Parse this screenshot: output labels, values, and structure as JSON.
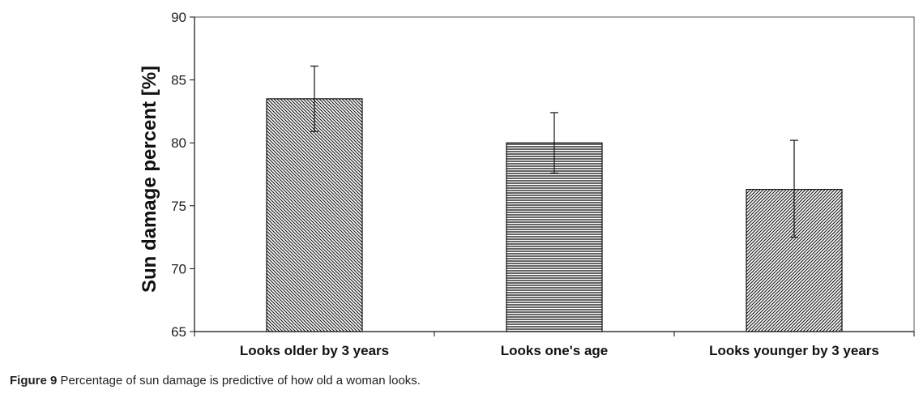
{
  "chart_data": {
    "type": "bar",
    "categories": [
      "Looks older by 3 years",
      "Looks one's age",
      "Looks younger by 3 years"
    ],
    "values": [
      83.5,
      80.0,
      76.3
    ],
    "error_bars": [
      {
        "low": 80.9,
        "high": 86.1
      },
      {
        "low": 77.6,
        "high": 82.4
      },
      {
        "low": 72.5,
        "high": 80.2
      }
    ],
    "patterns": [
      "diagonal-down",
      "horizontal",
      "diagonal-up"
    ],
    "ylabel": "Sun damage percent [%]",
    "xlabel": "",
    "ylim": [
      65,
      90
    ],
    "yticks": [
      65,
      70,
      75,
      80,
      85,
      90
    ],
    "grid": false,
    "legend": "none"
  },
  "caption": {
    "label": "Figure 9",
    "text": "Percentage of sun damage is predictive of how old a woman looks."
  },
  "colors": {
    "bar_stroke": "#111111",
    "pattern_line": "#111111",
    "bar_fill": "#ffffff"
  }
}
